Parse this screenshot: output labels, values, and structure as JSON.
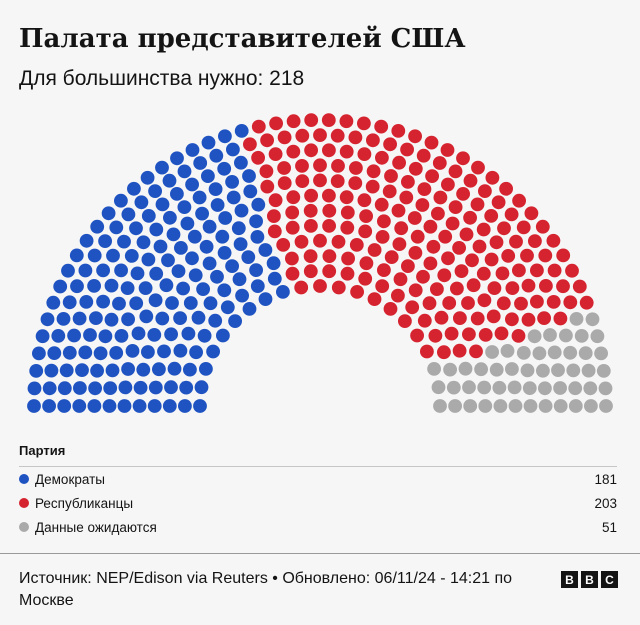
{
  "header": {
    "title": "Палата представителей США",
    "subtitle": "Для большинства нужно: 218"
  },
  "legend": {
    "title": "Партия",
    "items": [
      {
        "name": "Демократы",
        "value": "181",
        "color": "#1f53c2"
      },
      {
        "name": "Республиканцы",
        "value": "203",
        "color": "#d5232f"
      },
      {
        "name": "Данные ожидаются",
        "value": "51",
        "color": "#aaaaaa"
      }
    ]
  },
  "footer": {
    "source": "Источник: NEP/Edison via Reuters • Обновлено: 06/11/24 - 14:21 по Москве",
    "logo_letters": [
      "B",
      "B",
      "C"
    ]
  },
  "chart_data": {
    "type": "hemicycle",
    "total_seats": 435,
    "majority": 218,
    "series": [
      {
        "name": "Демократы",
        "value": 181,
        "color": "#1f53c2"
      },
      {
        "name": "Республиканцы",
        "value": 203,
        "color": "#d5232f"
      },
      {
        "name": "Данные ожидаются",
        "value": 51,
        "color": "#aaaaaa"
      }
    ]
  }
}
